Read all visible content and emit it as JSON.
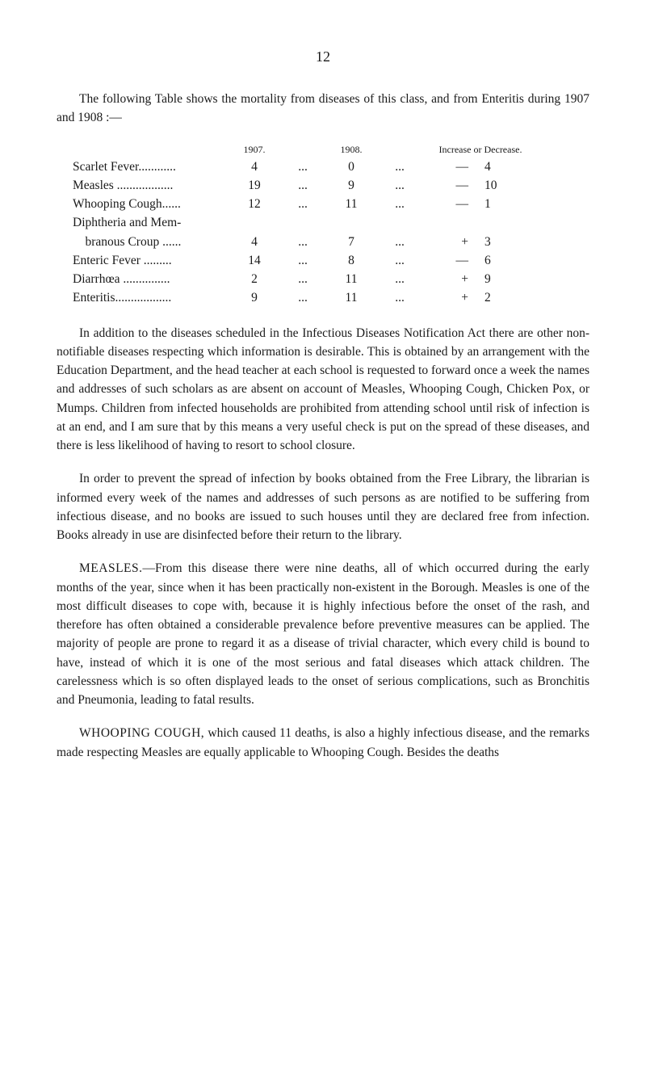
{
  "page_number": "12",
  "intro_paragraph": "The following Table shows the mortality from diseases of this class, and from Enteritis during 1907 and 1908 :—",
  "table": {
    "header": {
      "year1": "1907.",
      "year2": "1908.",
      "incdec": "Increase or Decrease."
    },
    "rows": [
      {
        "label": "Scarlet Fever............",
        "val1": "4",
        "val2": "0",
        "sign": "—",
        "diff": "4"
      },
      {
        "label": "Measles ..................",
        "val1": "19",
        "val2": "9",
        "sign": "—",
        "diff": "10"
      },
      {
        "label": "Whooping Cough......",
        "val1": "12",
        "val2": "11",
        "sign": "—",
        "diff": "1"
      },
      {
        "label": "Diphtheria and Mem-",
        "val1": "",
        "val2": "",
        "sign": "",
        "diff": ""
      },
      {
        "label": "    branous Croup ......",
        "val1": "4",
        "val2": "7",
        "sign": "+",
        "diff": "3"
      },
      {
        "label": "Enteric Fever  .........",
        "val1": "14",
        "val2": "8",
        "sign": "—",
        "diff": "6"
      },
      {
        "label": "Diarrhœa  ...............",
        "val1": "2",
        "val2": "11",
        "sign": "+",
        "diff": "9"
      },
      {
        "label": "Enteritis..................",
        "val1": "9",
        "val2": "11",
        "sign": "+",
        "diff": "2"
      }
    ]
  },
  "paragraphs": {
    "p1": "In addition to the diseases scheduled in the Infectious Diseases Notification Act there are other non-notifiable diseases respecting which information is desirable. This is obtained by an arrangement with the Education Department, and the head teacher at each school is requested to forward once a week the names and addresses of such scholars as are absent on account of Measles, Whooping Cough, Chicken Pox, or Mumps. Children from infected households are prohibited from attending school until risk of infection is at an end, and I am sure that by this means a very useful check is put on the spread of these diseases, and there is less likelihood of having to resort to school closure.",
    "p2": "In order to prevent the spread of infection by books obtained from the Free Library, the librarian is informed every week of the names and addresses of such persons as are notified to be suffering from infectious disease, and no books are issued to such houses until they are declared free from infection. Books already in use are disinfected before their return to the library.",
    "p3_label": "MEASLES.",
    "p3": "—From this disease there were nine deaths, all of which occurred during the early months of the year, since when it has been practically non-existent in the Borough. Measles is one of the most difficult diseases to cope with, because it is highly infectious before the onset of the rash, and therefore has often obtained a considerable prevalence before preventive measures can be applied. The majority of people are prone to regard it as a disease of trivial character, which every child is bound to have, instead of which it is one of the most serious and fatal diseases which attack children. The carelessness which is so often displayed leads to the onset of serious complications, such as Bronchitis and Pneumonia, leading to fatal results.",
    "p4_label": "WHOOPING COUGH,",
    "p4": " which caused 11 deaths, is also a highly infectious disease, and the remarks made respecting Measles are equally applicable to Whooping Cough. Besides the deaths"
  },
  "dots": "..."
}
